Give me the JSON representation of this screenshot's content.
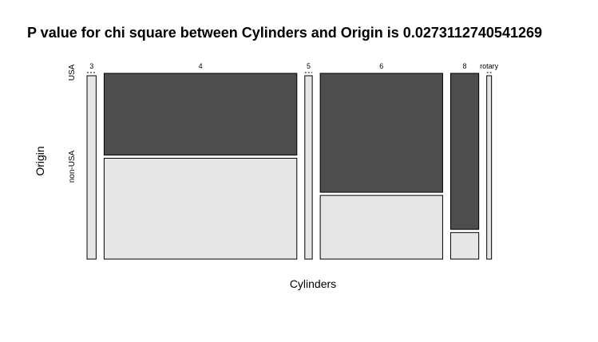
{
  "chart_data": {
    "type": "mosaic",
    "title": "P value for chi square between Cylinders  and  Origin  is  0.0273112740541269",
    "xlabel": "Cylinders",
    "ylabel": "Origin",
    "categories": [
      "3",
      "4",
      "5",
      "6",
      "8",
      "rotary"
    ],
    "levels": [
      "USA",
      "non-USA"
    ],
    "column_widths": [
      0.022,
      0.466,
      0.018,
      0.296,
      0.068,
      0.01
    ],
    "usa_share": [
      0.0,
      0.44,
      0.0,
      0.64,
      0.84,
      0.0
    ],
    "colors": {
      "USA": "#4d4d4d",
      "non-USA": "#e6e6e6",
      "outline": "#000000",
      "text": "#000000"
    }
  }
}
